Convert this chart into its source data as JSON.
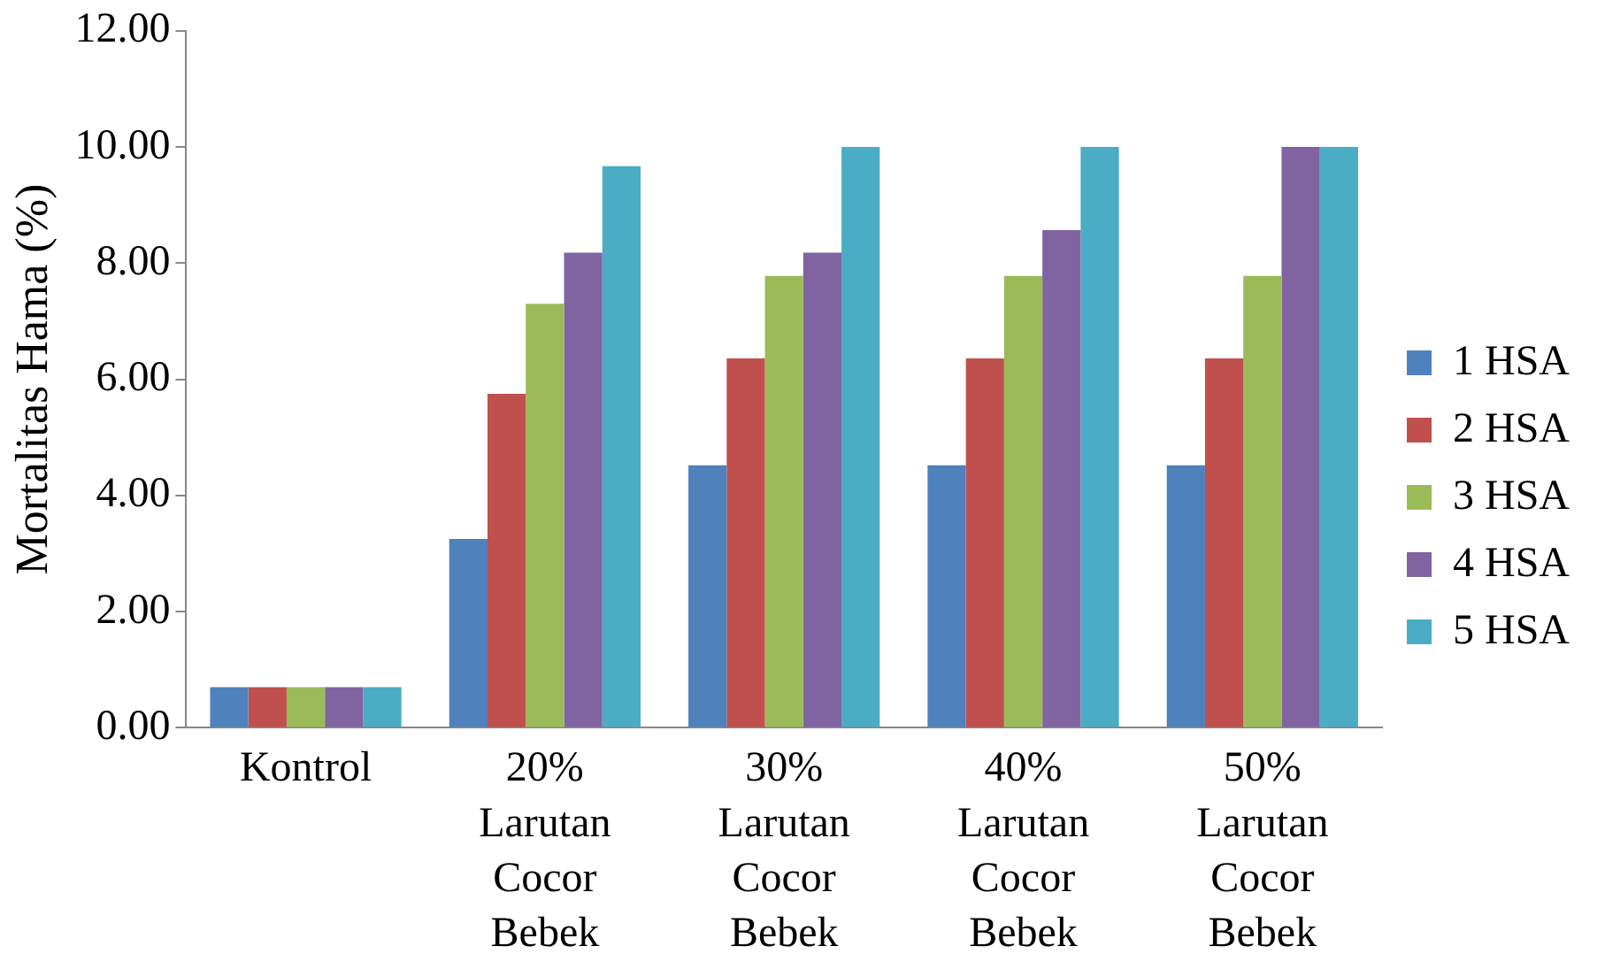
{
  "chart_data": {
    "type": "bar",
    "ylabel": "Mortalitas Hama (%)",
    "categories": [
      "Kontrol",
      "20% Larutan Cocor Bebek",
      "30% Larutan Cocor Bebek",
      "40% Larutan Cocor Bebek",
      "50% Larutan Cocor Bebek"
    ],
    "series": [
      {
        "name": "1 HSA",
        "color": "#4f81bd",
        "values": [
          0.7,
          3.25,
          4.52,
          4.52,
          4.52
        ]
      },
      {
        "name": "2 HSA",
        "color": "#c0504d",
        "values": [
          0.7,
          5.75,
          6.36,
          6.36,
          6.36
        ]
      },
      {
        "name": "3 HSA",
        "color": "#9bbb59",
        "values": [
          0.7,
          7.3,
          7.78,
          7.78,
          7.78
        ]
      },
      {
        "name": "4 HSA",
        "color": "#8064a2",
        "values": [
          0.7,
          8.18,
          8.18,
          8.57,
          10
        ]
      },
      {
        "name": "5 HSA",
        "color": "#4bacc6",
        "values": [
          0.7,
          9.67,
          10,
          10,
          10
        ]
      }
    ],
    "ylim": [
      0,
      12
    ],
    "yticks": [
      {
        "value": 0,
        "label": "0.00"
      },
      {
        "value": 2,
        "label": "2.00"
      },
      {
        "value": 4,
        "label": "4.00"
      },
      {
        "value": 6,
        "label": "6.00"
      },
      {
        "value": 8,
        "label": "8.00"
      },
      {
        "value": 10,
        "label": "10.00"
      },
      {
        "value": 12,
        "label": "12.00"
      }
    ],
    "grid": false,
    "legend": "right"
  }
}
